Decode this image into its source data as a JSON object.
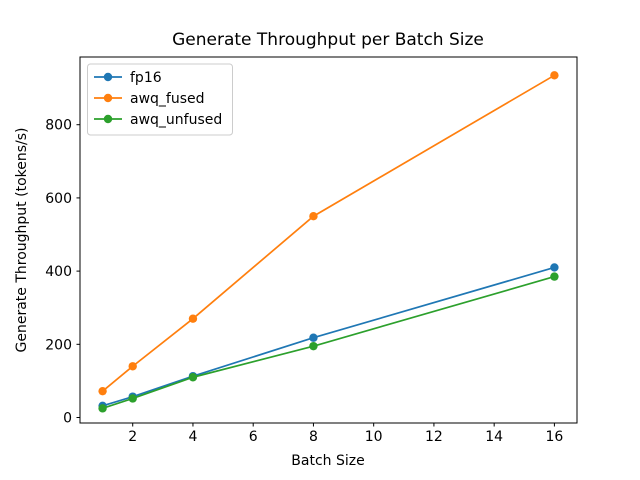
{
  "chart_data": {
    "type": "line",
    "title": "Generate Throughput per Batch Size",
    "xlabel": "Batch Size",
    "ylabel": "Generate Throughput (tokens/s)",
    "x": [
      1,
      2,
      4,
      8,
      16
    ],
    "series": [
      {
        "name": "fp16",
        "color": "#1f77b4",
        "values": [
          32,
          57,
          113,
          218,
          410
        ]
      },
      {
        "name": "awq_fused",
        "color": "#ff7f0e",
        "values": [
          72,
          140,
          270,
          550,
          935
        ]
      },
      {
        "name": "awq_unfused",
        "color": "#2ca02c",
        "values": [
          25,
          52,
          110,
          195,
          385
        ]
      }
    ],
    "xticks": [
      2,
      4,
      6,
      8,
      10,
      12,
      14,
      16
    ],
    "yticks": [
      0,
      200,
      400,
      600,
      800
    ],
    "xlim": [
      0.25,
      16.75
    ],
    "ylim": [
      -15,
      985
    ],
    "grid": false,
    "legend_position": "upper left",
    "marker": "o",
    "line_width": 1.7,
    "marker_radius": 4.2,
    "background_color": "#ffffff",
    "axes_color": "#000000",
    "legend_border_color": "#cccccc"
  }
}
